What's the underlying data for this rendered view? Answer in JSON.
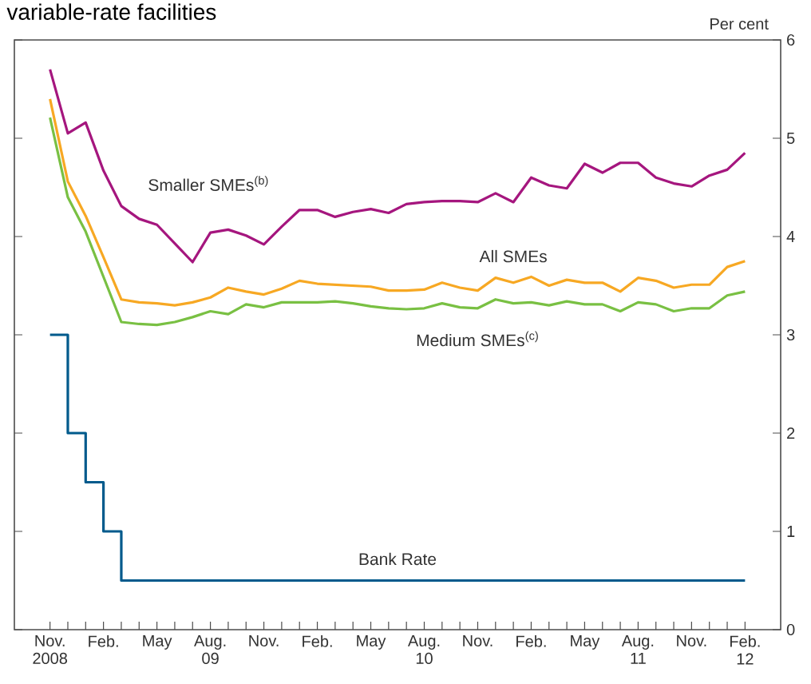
{
  "chart_data": {
    "type": "line",
    "title": "variable-rate facilities",
    "ylabel": "Per cent",
    "xlim": [
      "2008-09",
      "2012-04"
    ],
    "ylim": [
      0,
      6
    ],
    "yticks": [
      0,
      1,
      2,
      3,
      4,
      5,
      6
    ],
    "xticks": [
      {
        "value": "2008-11",
        "label": "Nov. 2008"
      },
      {
        "value": "2008-12",
        "label": null
      },
      {
        "value": "2009-01",
        "label": null
      },
      {
        "value": "2009-02",
        "label": "Feb."
      },
      {
        "value": "2009-03",
        "label": null
      },
      {
        "value": "2009-04",
        "label": null
      },
      {
        "value": "2009-05",
        "label": "May"
      },
      {
        "value": "2009-06",
        "label": null
      },
      {
        "value": "2009-07",
        "label": null
      },
      {
        "value": "2009-08",
        "label": "Aug. 09"
      },
      {
        "value": "2009-09",
        "label": null
      },
      {
        "value": "2009-10",
        "label": null
      },
      {
        "value": "2009-11",
        "label": "Nov."
      },
      {
        "value": "2009-12",
        "label": null
      },
      {
        "value": "2010-01",
        "label": null
      },
      {
        "value": "2010-02",
        "label": "Feb."
      },
      {
        "value": "2010-03",
        "label": null
      },
      {
        "value": "2010-04",
        "label": null
      },
      {
        "value": "2010-05",
        "label": "May"
      },
      {
        "value": "2010-06",
        "label": null
      },
      {
        "value": "2010-07",
        "label": null
      },
      {
        "value": "2010-08",
        "label": "Aug. 10"
      },
      {
        "value": "2010-09",
        "label": null
      },
      {
        "value": "2010-10",
        "label": null
      },
      {
        "value": "2010-11",
        "label": "Nov."
      },
      {
        "value": "2010-12",
        "label": null
      },
      {
        "value": "2011-01",
        "label": null
      },
      {
        "value": "2011-02",
        "label": "Feb."
      },
      {
        "value": "2011-03",
        "label": null
      },
      {
        "value": "2011-04",
        "label": null
      },
      {
        "value": "2011-05",
        "label": "May"
      },
      {
        "value": "2011-06",
        "label": null
      },
      {
        "value": "2011-07",
        "label": null
      },
      {
        "value": "2011-08",
        "label": "Aug. 11"
      },
      {
        "value": "2011-09",
        "label": null
      },
      {
        "value": "2011-10",
        "label": null
      },
      {
        "value": "2011-11",
        "label": "Nov."
      },
      {
        "value": "2011-12",
        "label": null
      },
      {
        "value": "2012-01",
        "label": null
      },
      {
        "value": "2012-02",
        "label": "Feb. 12"
      }
    ],
    "x": [
      "2008-11",
      "2008-12",
      "2009-01",
      "2009-02",
      "2009-03",
      "2009-04",
      "2009-05",
      "2009-06",
      "2009-07",
      "2009-08",
      "2009-09",
      "2009-10",
      "2009-11",
      "2009-12",
      "2010-01",
      "2010-02",
      "2010-03",
      "2010-04",
      "2010-05",
      "2010-06",
      "2010-07",
      "2010-08",
      "2010-09",
      "2010-10",
      "2010-11",
      "2010-12",
      "2011-01",
      "2011-02",
      "2011-03",
      "2011-04",
      "2011-05",
      "2011-06",
      "2011-07",
      "2011-08",
      "2011-09",
      "2011-10",
      "2011-11",
      "2011-12",
      "2012-01",
      "2012-02"
    ],
    "series": [
      {
        "name": "Smaller SMEs$^{(b)}$",
        "color": "#a5167e",
        "values": [
          5.7,
          5.05,
          5.16,
          4.67,
          4.31,
          4.18,
          4.12,
          3.93,
          3.74,
          4.04,
          4.07,
          4.01,
          3.92,
          4.1,
          4.27,
          4.27,
          4.2,
          4.25,
          4.28,
          4.24,
          4.33,
          4.35,
          4.36,
          4.36,
          4.35,
          4.44,
          4.35,
          4.6,
          4.52,
          4.49,
          4.74,
          4.65,
          4.75,
          4.75,
          4.6,
          4.54,
          4.51,
          4.62,
          4.68,
          4.85
        ]
      },
      {
        "name": "All SMEs",
        "color": "#f7a823",
        "values": [
          5.4,
          4.56,
          4.21,
          3.79,
          3.36,
          3.33,
          3.32,
          3.3,
          3.33,
          3.38,
          3.48,
          3.44,
          3.41,
          3.47,
          3.55,
          3.52,
          3.51,
          3.5,
          3.49,
          3.45,
          3.45,
          3.46,
          3.53,
          3.48,
          3.45,
          3.58,
          3.53,
          3.59,
          3.5,
          3.56,
          3.53,
          3.53,
          3.44,
          3.58,
          3.55,
          3.48,
          3.51,
          3.51,
          3.69,
          3.75
        ]
      },
      {
        "name": "Medium SMEs$^{(c)}$",
        "color": "#79c043",
        "values": [
          5.21,
          4.4,
          4.05,
          3.59,
          3.13,
          3.11,
          3.1,
          3.13,
          3.18,
          3.24,
          3.21,
          3.31,
          3.28,
          3.33,
          3.33,
          3.33,
          3.34,
          3.32,
          3.29,
          3.27,
          3.26,
          3.27,
          3.32,
          3.28,
          3.27,
          3.36,
          3.32,
          3.33,
          3.3,
          3.34,
          3.31,
          3.31,
          3.24,
          3.33,
          3.31,
          3.24,
          3.27,
          3.27,
          3.4,
          3.44
        ]
      },
      {
        "name": "Bank Rate",
        "type": "step",
        "color": "#005a8c",
        "x": [
          "2008-11",
          "2008-12",
          "2009-01",
          "2009-02",
          "2009-03",
          "2012-02"
        ],
        "values": [
          3,
          2,
          1.5,
          1,
          0.5,
          0.5
        ]
      }
    ]
  }
}
